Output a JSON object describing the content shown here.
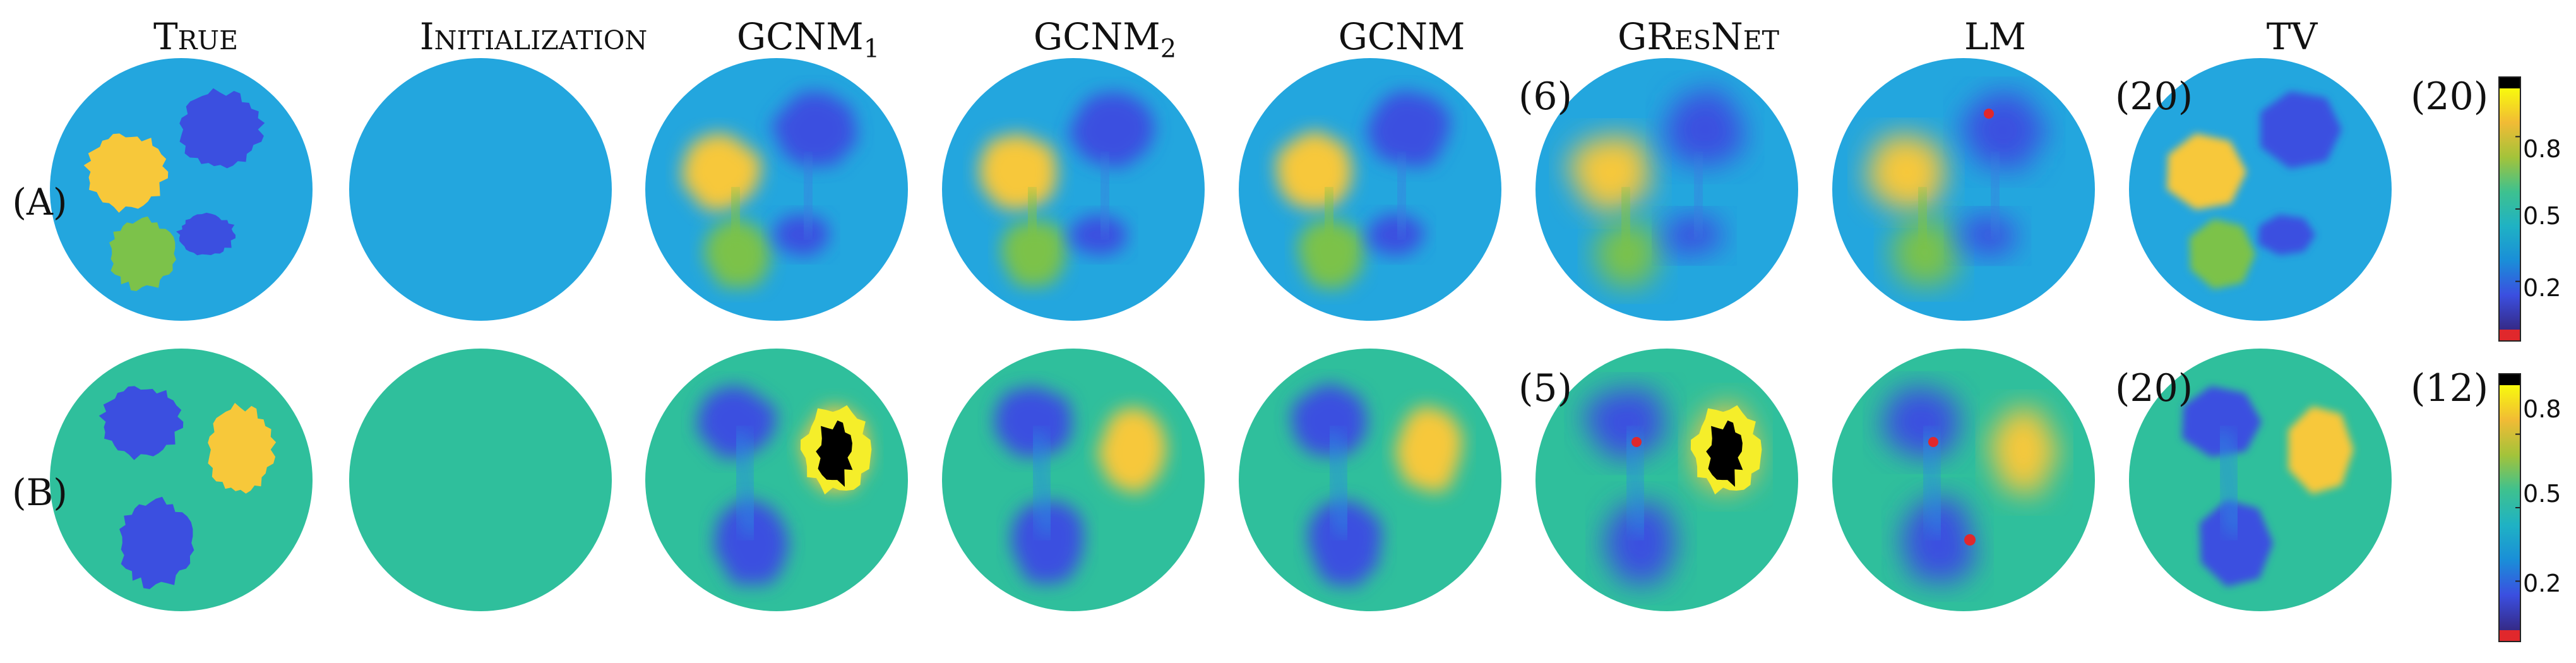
{
  "columns": [
    {
      "key": "true",
      "label": "True",
      "small_caps": true
    },
    {
      "key": "init",
      "label": "Initialization",
      "small_caps": true
    },
    {
      "key": "gcnm1",
      "label": "GCNM",
      "sub": "1"
    },
    {
      "key": "gcnm2",
      "label": "GCNM",
      "sub": "2"
    },
    {
      "key": "gcnm",
      "label": "GCNM"
    },
    {
      "key": "gresnet",
      "label": "GResNet",
      "small_caps": true
    },
    {
      "key": "lm",
      "label": "LM"
    },
    {
      "key": "tv",
      "label": "TV"
    }
  ],
  "rows": [
    {
      "label": "(A)",
      "iterations": [
        {
          "col": "gcnm",
          "text": "(6)"
        },
        {
          "col": "lm",
          "text": "(20)"
        },
        {
          "col": "tv",
          "text": "(20)"
        }
      ],
      "colorbar_ticks": [
        "0.8",
        "0.5",
        "0.2"
      ]
    },
    {
      "label": "(B)",
      "iterations": [
        {
          "col": "gcnm",
          "text": "(5)"
        },
        {
          "col": "lm",
          "text": "(20)"
        },
        {
          "col": "tv",
          "text": "(12)"
        }
      ],
      "colorbar_ticks": [
        "0.8",
        "0.5",
        "0.2"
      ]
    }
  ],
  "colors": {
    "background_A": "#23a6de",
    "background_B": "#2fbf9c",
    "yellow": "#f7c83a",
    "bright_yellow": "#f5ee2a",
    "green": "#7cc24a",
    "blue": "#3b4fe0",
    "dark_blue": "#3a3ccf",
    "black": "#000000",
    "red": "#e0282c",
    "colormap": [
      "#352a87",
      "#3b4fe0",
      "#1a8ed8",
      "#1fb2c4",
      "#3ec18f",
      "#a3c33a",
      "#f1bb35",
      "#f8fa0d"
    ]
  }
}
